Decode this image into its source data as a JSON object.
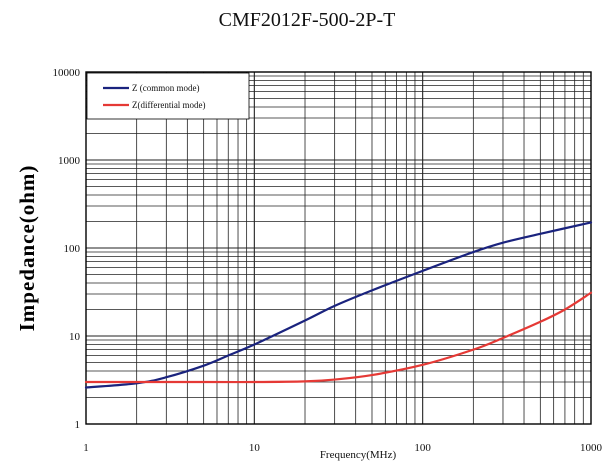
{
  "chart_data": {
    "type": "line",
    "title": "CMF2012F-500-2P-T",
    "xlabel": "Frequency(MHz)",
    "ylabel": "Impedance(ohm)",
    "x_scale": "log",
    "y_scale": "log",
    "xlim": [
      1,
      1000
    ],
    "ylim": [
      1,
      10000
    ],
    "x_ticks": [
      "1",
      "10",
      "100",
      "1000"
    ],
    "y_ticks": [
      "1",
      "10",
      "100",
      "1000",
      "10000"
    ],
    "grid": true,
    "legend_position": "top-left",
    "series": [
      {
        "name": "Z (common mode)",
        "color": "#1a237e",
        "x": [
          1,
          2,
          3,
          5,
          7,
          10,
          20,
          30,
          50,
          100,
          200,
          300,
          500,
          1000
        ],
        "y": [
          2.6,
          2.9,
          3.4,
          4.6,
          6.0,
          8.0,
          15,
          22,
          33,
          55,
          90,
          115,
          145,
          195
        ]
      },
      {
        "name": "Z(differential mode)",
        "color": "#e53935",
        "x": [
          1,
          2,
          5,
          10,
          20,
          30,
          50,
          100,
          200,
          300,
          500,
          700,
          1000
        ],
        "y": [
          3.0,
          3.0,
          3.0,
          3.0,
          3.05,
          3.2,
          3.6,
          4.7,
          7.0,
          9.5,
          14.5,
          20,
          31
        ]
      }
    ]
  }
}
